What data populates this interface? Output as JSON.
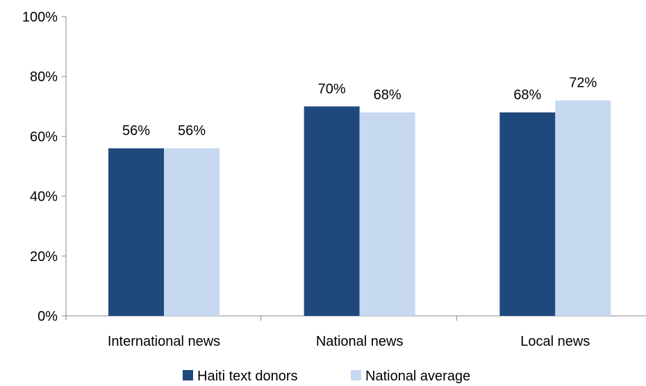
{
  "chart_data": {
    "type": "bar",
    "categories": [
      "International news",
      "National news",
      "Local news"
    ],
    "series": [
      {
        "name": "Haiti text donors",
        "values": [
          56,
          70,
          68
        ],
        "color": "#1f497d"
      },
      {
        "name": "National average",
        "values": [
          56,
          68,
          72
        ],
        "color": "#c6d9f1"
      }
    ],
    "data_labels": [
      [
        "56%",
        "70%",
        "68%"
      ],
      [
        "56%",
        "68%",
        "72%"
      ]
    ],
    "ylim": [
      0,
      100
    ],
    "yticks": [
      0,
      20,
      40,
      60,
      80,
      100
    ],
    "ytick_labels": [
      "0%",
      "20%",
      "40%",
      "60%",
      "80%",
      "100%"
    ],
    "grid": false,
    "legend_position": "bottom",
    "title": "",
    "xlabel": "",
    "ylabel": ""
  }
}
